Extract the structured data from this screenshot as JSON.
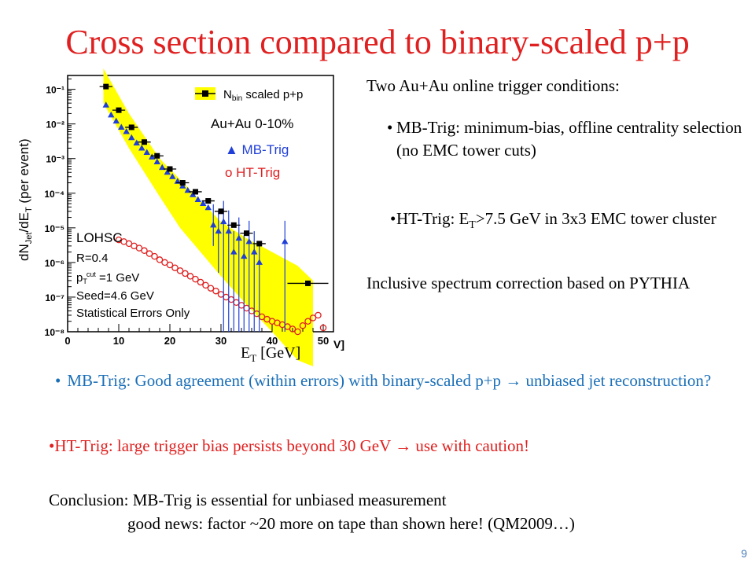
{
  "slide": {
    "title": "Cross section compared to binary-scaled p+p",
    "page_number": "9"
  },
  "right_panel": {
    "intro": "Two Au+Au online trigger conditions:",
    "bullet1": "MB-Trig:  minimum-bias, offline centrality selection (no EMC tower cuts)",
    "bullet2_a": "HT-Trig: E",
    "bullet2_sub": "T",
    "bullet2_b": ">7.5 GeV in 3x3 EMC tower cluster",
    "inclusive": "Inclusive spectrum correction based on PYTHIA"
  },
  "bottom": {
    "mb_line": "MB-Trig: Good agreement (within errors) with binary-scaled p+p → unbiased jet reconstruction?",
    "ht_line": "HT-Trig: large trigger bias persists  beyond 30 GeV → use with caution!",
    "conclusion1": "Conclusion: MB-Trig is essential for unbiased measurement",
    "conclusion2": "good news: factor ~20 more on tape than shown here! (QM2009…)"
  },
  "colors": {
    "title": "#e02020",
    "blue_text": "#1a6fb8",
    "band": "#ffff00",
    "mb_series": "#1f3fd8",
    "ht_series": "#e02020",
    "pp_series": "#000000"
  },
  "chart_data": {
    "type": "scatter",
    "log_y": true,
    "xlim": [
      0,
      52
    ],
    "ylim_exp": [
      -8,
      -0.6
    ],
    "x_ticks": [
      "0",
      "10",
      "20",
      "30",
      "40",
      "50"
    ],
    "y_ticks": [
      "10⁻¹",
      "10⁻²",
      "10⁻³",
      "10⁻⁴",
      "10⁻⁵",
      "10⁻⁶",
      "10⁻⁷",
      "10⁻⁸"
    ],
    "xlabel_main": "E",
    "xlabel_sub": "T",
    "xlabel_units": " [GeV]",
    "xunit_cut": "V]",
    "ylabel_a": "dN",
    "ylabel_sub1": "Jet",
    "ylabel_b": "/dE",
    "ylabel_sub2": "T",
    "ylabel_c": " (per event)",
    "legend": {
      "pp_label_a": "N",
      "pp_label_sub": "bin",
      "pp_label_b": " scaled p+p",
      "system": "Au+Au 0-10%",
      "mb_label": "▲ MB-Trig",
      "ht_label": "o HT-Trig"
    },
    "annotations": {
      "algo": "LOHSC",
      "radius": "R=0.4",
      "ptcut_a": "p",
      "ptcut_sub": "T",
      "ptcut_sup": "cut",
      "ptcut_b": " =1 GeV",
      "seed": "Seed=4.6 GeV",
      "errors": "Statistical Errors Only"
    },
    "pp_band": {
      "x": [
        7,
        12,
        18,
        22,
        26,
        30,
        35,
        40,
        45,
        48
      ],
      "upper": [
        0.4,
        0.02,
        0.001,
        0.00025,
        6e-05,
        1.5e-05,
        5e-06,
        2e-06,
        8e-07,
        3e-07
      ],
      "lower": [
        0.04,
        0.002,
        8e-05,
        1e-05,
        2e-06,
        4e-07,
        6e-08,
        1e-08,
        1.5e-09,
        1e-09
      ]
    },
    "series": [
      {
        "name": "N bin scaled p+p",
        "x": [
          7.5,
          10,
          12.5,
          15,
          17.5,
          20,
          22.5,
          25,
          27.5,
          30,
          32.5,
          35,
          37.5,
          47
        ],
        "y": [
          0.12,
          0.025,
          0.008,
          0.003,
          0.0012,
          0.0005,
          0.0002,
          0.00011,
          6e-05,
          3e-05,
          1.2e-05,
          7e-06,
          3.5e-06,
          2.5e-07
        ],
        "xerr": 1.25
      },
      {
        "name": "MB-Trig",
        "x": [
          7.5,
          8.5,
          9.5,
          10.5,
          11.5,
          12.5,
          13.5,
          14.5,
          15.5,
          16.5,
          17.5,
          18.5,
          19.5,
          20.5,
          21.5,
          22.5,
          23.5,
          24.5,
          25.5,
          26.5,
          27.5,
          28.5,
          29.5,
          30.5,
          31.5,
          32.5,
          33.5,
          34.5,
          35.5,
          36.5,
          37.5,
          42.5
        ],
        "y": [
          0.035,
          0.018,
          0.012,
          0.008,
          0.006,
          0.004,
          0.0028,
          0.002,
          0.0015,
          0.0011,
          0.0008,
          0.00055,
          0.0004,
          0.0003,
          0.00022,
          0.00016,
          0.00012,
          9e-05,
          6.5e-05,
          5e-05,
          3.8e-05,
          1.2e-05,
          8e-06,
          1.5e-05,
          8e-06,
          2e-06,
          5e-06,
          1.5e-06,
          4e-06,
          2e-06,
          1e-06,
          4e-06
        ],
        "yerr_low_to": [
          0,
          0,
          0,
          0,
          0,
          0,
          0,
          0,
          0,
          0,
          0,
          0,
          0,
          0,
          0,
          0,
          0,
          0,
          0,
          0,
          0,
          3e-06,
          5e-07,
          1e-08,
          1e-08,
          1e-08,
          1e-08,
          1e-08,
          1e-08,
          1e-08,
          1e-08,
          1e-08
        ]
      },
      {
        "name": "HT-Trig",
        "x": [
          10,
          11,
          12,
          13,
          14,
          15,
          16,
          17,
          18,
          19,
          20,
          21,
          22,
          23,
          24,
          25,
          26,
          27,
          28,
          29,
          30,
          31,
          32,
          33,
          34,
          35,
          36,
          37,
          38,
          39,
          40,
          41,
          42,
          43,
          44,
          45,
          46,
          47,
          48,
          49,
          50
        ],
        "y": [
          4.5e-06,
          4e-06,
          3.5e-06,
          3e-06,
          2.6e-06,
          2.2e-06,
          1.8e-06,
          1.5e-06,
          1.2e-06,
          1e-06,
          8.5e-07,
          7e-07,
          5.8e-07,
          4.8e-07,
          4e-07,
          3.3e-07,
          2.7e-07,
          2.2e-07,
          1.8e-07,
          1.5e-07,
          1.2e-07,
          1e-07,
          8.5e-08,
          7e-08,
          5.8e-08,
          4.8e-08,
          4e-08,
          3.3e-08,
          2.7e-08,
          2.3e-08,
          2e-08,
          1.8e-08,
          1.6e-08,
          1.4e-08,
          1.2e-08,
          1e-08,
          1.5e-08,
          2e-08,
          2.5e-08,
          3e-08,
          1.3e-08
        ]
      }
    ]
  }
}
